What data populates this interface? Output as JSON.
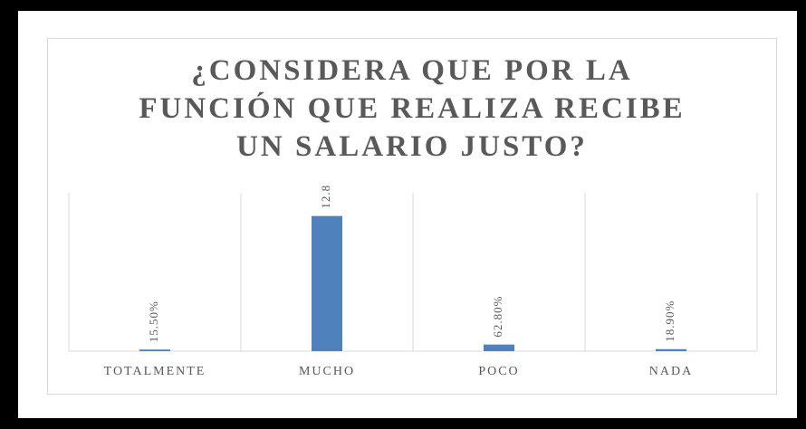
{
  "chart_data": {
    "type": "bar",
    "title": "¿CONSIDERA QUE POR LA FUNCIÓN QUE REALIZA RECIBE UN SALARIO JUSTO?",
    "categories": [
      "TOTALMENTE",
      "MUCHO",
      "POCO",
      "NADA"
    ],
    "values": [
      0.155,
      12.8,
      0.628,
      0.189
    ],
    "value_labels": [
      "15.50%",
      "12.8",
      "62.80%",
      "18.90%"
    ],
    "color": "#4f81bd",
    "ylim": [
      0,
      15
    ]
  }
}
